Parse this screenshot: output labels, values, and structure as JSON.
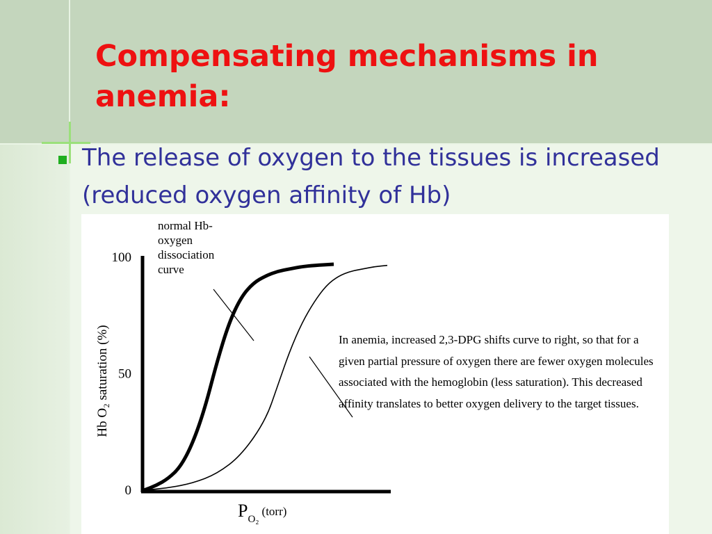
{
  "slide": {
    "title": "Compensating mechanisms in anemia:",
    "bullet": "The release of oxygen to the tissues is increased (reduced oxygen affinity of Hb)"
  },
  "chart_data": {
    "type": "line",
    "xlabel": "P",
    "xlabel_sub": "O₂",
    "xlabel_unit": "(torr)",
    "ylabel": "Hb O₂ saturation (%)",
    "yticks": [
      "100",
      "50",
      "0"
    ],
    "ylim": [
      0,
      100
    ],
    "xlim": [
      0,
      100
    ],
    "series": [
      {
        "x": [
          0,
          5,
          10,
          15,
          20,
          25,
          30,
          35,
          40,
          45,
          50,
          55,
          60,
          65,
          70,
          78
        ],
        "values": [
          0,
          2,
          5,
          10,
          20,
          35,
          55,
          72,
          83,
          89,
          92,
          94,
          95,
          96,
          96.5,
          97
        ],
        "style": "thick"
      },
      {
        "x": [
          0,
          10,
          20,
          30,
          40,
          50,
          55,
          60,
          65,
          70,
          75,
          80,
          85,
          90,
          95,
          100
        ],
        "values": [
          0,
          1,
          3,
          7,
          15,
          30,
          45,
          60,
          72,
          81,
          88,
          92,
          94,
          95,
          96,
          96.5
        ],
        "style": "thin"
      }
    ],
    "annotations": {
      "normal": "normal Hb-oxygen dissociation curve",
      "anemia": "In anemia, increased 2,3-DPG shifts curve to right, so that for a given partial pressure of oxygen there are fewer oxygen molecules associated with the hemoglobin (less saturation). This decreased affinity translates to better oxygen delivery to the target tissues."
    }
  },
  "colors": {
    "title": "#ee1111",
    "bullet_text": "#31319a",
    "bullet_marker": "#1fae1f",
    "header_band": "#c4d6bd"
  }
}
